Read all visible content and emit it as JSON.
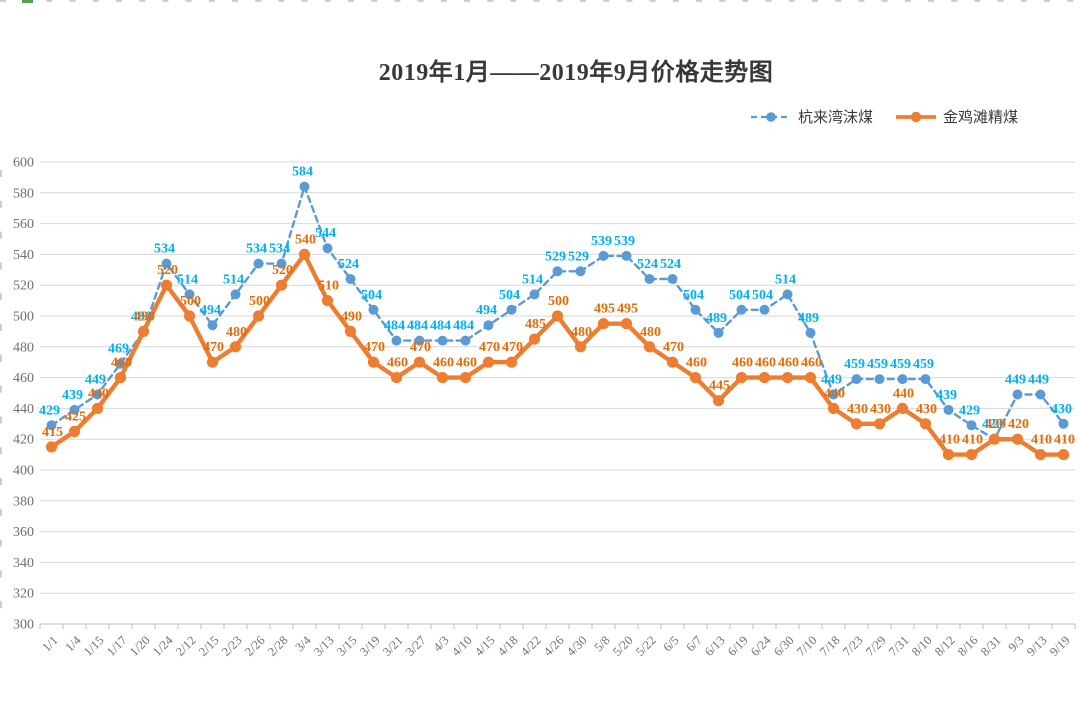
{
  "chart_data": {
    "type": "line",
    "title": "2019年1月——2019年9月价格走势图",
    "categories": [
      "1/1",
      "1/4",
      "1/15",
      "1/17",
      "1/20",
      "1/24",
      "2/12",
      "2/15",
      "2/23",
      "2/26",
      "2/28",
      "3/4",
      "3/13",
      "3/15",
      "3/19",
      "3/21",
      "3/27",
      "4/3",
      "4/10",
      "4/15",
      "4/18",
      "4/22",
      "4/26",
      "4/30",
      "5/8",
      "5/20",
      "5/22",
      "6/5",
      "6/7",
      "6/13",
      "6/19",
      "6/24",
      "6/30",
      "7/10",
      "7/18",
      "7/23",
      "7/29",
      "7/31",
      "8/10",
      "8/12",
      "8/16",
      "8/31",
      "9/3",
      "9/13",
      "9/19"
    ],
    "series": [
      {
        "id": "hanglaiwan",
        "name": "杭来湾沫煤",
        "style": "dashed",
        "line_color": "#5B9BD5",
        "label_color": "#00B0F0",
        "values": [
          429,
          439,
          449,
          469,
          490,
          534,
          514,
          494,
          514,
          534,
          534,
          584,
          544,
          524,
          504,
          484,
          484,
          484,
          484,
          494,
          504,
          514,
          529,
          529,
          539,
          539,
          524,
          524,
          504,
          489,
          504,
          504,
          514,
          489,
          449,
          459,
          459,
          459,
          459,
          439,
          429,
          420,
          449,
          449,
          430
        ]
      },
      {
        "id": "jinjitan",
        "name": "金鸡滩精煤",
        "style": "solid",
        "line_color": "#ED7D31",
        "label_color": "#E36C09",
        "values": [
          415,
          425,
          440,
          460,
          490,
          520,
          500,
          470,
          480,
          500,
          520,
          540,
          510,
          490,
          470,
          460,
          470,
          460,
          460,
          470,
          470,
          485,
          500,
          480,
          495,
          495,
          480,
          470,
          460,
          445,
          460,
          460,
          460,
          460,
          440,
          430,
          430,
          440,
          430,
          410,
          410,
          420,
          420,
          410,
          410
        ]
      }
    ],
    "ylim": [
      300,
      600
    ],
    "y_step": 20,
    "y_tick_labels": [
      "300",
      "320",
      "340",
      "360",
      "380",
      "400",
      "420",
      "440",
      "460",
      "480",
      "500",
      "520",
      "540",
      "560",
      "580",
      "600"
    ],
    "grid": "horizontal",
    "legend_position": "top-right",
    "grid_color": "#D9D9D9",
    "axis_color": "#BFBFBF",
    "axis_text_color": "#6F6F6F",
    "background": "#FFFFFF"
  }
}
